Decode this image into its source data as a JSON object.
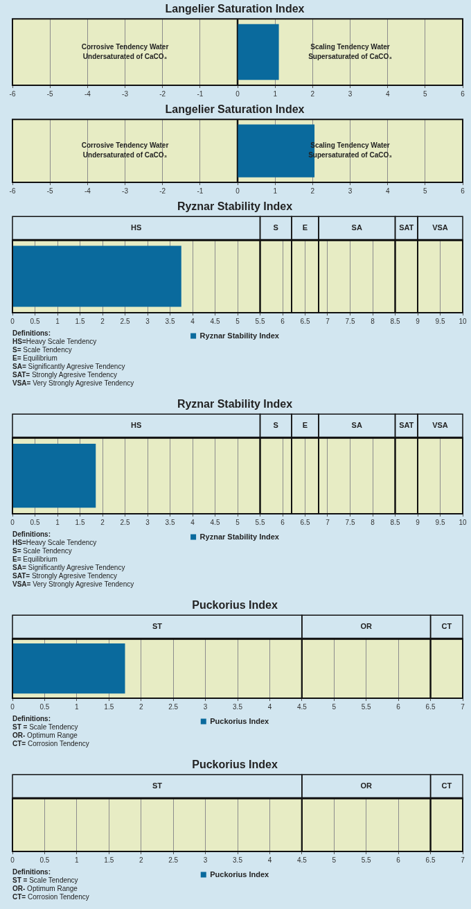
{
  "chart_data": [
    {
      "type": "bar",
      "orientation": "horizontal",
      "title": "Langelier Saturation Index",
      "categories": [
        null
      ],
      "series": [
        {
          "color": "#0a6a9d",
          "values": [
            1.1
          ]
        }
      ],
      "xlim": [
        -6,
        6
      ],
      "xticks": [
        -6,
        -5,
        -4,
        -3,
        -2,
        -1,
        0,
        1,
        2,
        3,
        4,
        5,
        6
      ],
      "grid": "x",
      "tick_labels": "x",
      "ref_lines": [
        {
          "axis": "x",
          "value": 0
        }
      ],
      "annotations": [
        "Corrosive Tendency Water Undersaturated of CaCO₃",
        "Scaling Tendency Water Supersaturated of CaCO₃"
      ]
    },
    {
      "type": "bar",
      "orientation": "horizontal",
      "title": "Langelier Saturation Index",
      "categories": [
        null
      ],
      "series": [
        {
          "color": "#0a6a9d",
          "values": [
            2.05
          ]
        }
      ],
      "xlim": [
        -6,
        6
      ],
      "xticks": [
        -6,
        -5,
        -4,
        -3,
        -2,
        -1,
        0,
        1,
        2,
        3,
        4,
        5,
        6
      ],
      "grid": "x",
      "tick_labels": "x",
      "ref_lines": [
        {
          "axis": "x",
          "value": 0
        }
      ],
      "annotations": [
        "Corrosive Tendency Water Undersaturated of CaCO₃",
        "Scaling Tendency Water Supersaturated of CaCO₃"
      ]
    },
    {
      "type": "bar",
      "orientation": "horizontal",
      "title": "Ryznar Stability Index",
      "categories": [
        null
      ],
      "series": [
        {
          "name": "Ryznar Stability Index",
          "color": "#0a6a9d",
          "values": [
            3.75
          ]
        }
      ],
      "xlim": [
        0,
        10
      ],
      "xticks": [
        0,
        0.5,
        1,
        1.5,
        2,
        2.5,
        3,
        3.5,
        4,
        4.5,
        5,
        5.5,
        6,
        6.5,
        7,
        7.5,
        8,
        8.5,
        9,
        9.5,
        10
      ],
      "grid": "x",
      "tick_labels": "x",
      "legend": "bottom",
      "bands": [
        {
          "axis": "x",
          "from": 0,
          "to": 5.5,
          "label": "HS",
          "color": "#e7ecc4"
        },
        {
          "axis": "x",
          "from": 5.5,
          "to": 6.2,
          "label": "S",
          "color": "#e7ecc4"
        },
        {
          "axis": "x",
          "from": 6.2,
          "to": 6.8,
          "label": "E",
          "color": "#e7ecc4"
        },
        {
          "axis": "x",
          "from": 6.8,
          "to": 8.5,
          "label": "SA",
          "color": "#e7ecc4"
        },
        {
          "axis": "x",
          "from": 8.5,
          "to": 9,
          "label": "SAT",
          "color": "#e7ecc4"
        },
        {
          "axis": "x",
          "from": 9,
          "to": 10,
          "label": "VSA",
          "color": "#e7ecc4"
        }
      ],
      "annotations": [
        "Definitions:",
        "HS=Heavy Scale Tendency",
        "S= Scale Tendency",
        "E= Equilibrium",
        "SA= Significantly Agresive Tendency",
        "SAT= Strongly Agresive Tendency",
        "VSA= Very Strongly Agresive Tendency"
      ]
    },
    {
      "type": "bar",
      "orientation": "horizontal",
      "title": "Ryznar Stability Index",
      "categories": [
        null
      ],
      "series": [
        {
          "name": "Ryznar Stability Index",
          "color": "#0a6a9d",
          "values": [
            1.85
          ]
        }
      ],
      "xlim": [
        0,
        10
      ],
      "xticks": [
        0,
        0.5,
        1,
        1.5,
        2,
        2.5,
        3,
        3.5,
        4,
        4.5,
        5,
        5.5,
        6,
        6.5,
        7,
        7.5,
        8,
        8.5,
        9,
        9.5,
        10
      ],
      "grid": "x",
      "tick_labels": "x",
      "legend": "bottom",
      "bands": [
        {
          "axis": "x",
          "from": 0,
          "to": 5.5,
          "label": "HS",
          "color": "#e7ecc4"
        },
        {
          "axis": "x",
          "from": 5.5,
          "to": 6.2,
          "label": "S",
          "color": "#e7ecc4"
        },
        {
          "axis": "x",
          "from": 6.2,
          "to": 6.8,
          "label": "E",
          "color": "#e7ecc4"
        },
        {
          "axis": "x",
          "from": 6.8,
          "to": 8.5,
          "label": "SA",
          "color": "#e7ecc4"
        },
        {
          "axis": "x",
          "from": 8.5,
          "to": 9,
          "label": "SAT",
          "color": "#e7ecc4"
        },
        {
          "axis": "x",
          "from": 9,
          "to": 10,
          "label": "VSA",
          "color": "#e7ecc4"
        }
      ],
      "annotations": [
        "Definitions:",
        "HS=Heavy Scale Tendency",
        "S= Scale Tendency",
        "E= Equilibrium",
        "SA= Significantly Agresive Tendency",
        "SAT= Strongly Agresive Tendency",
        "VSA= Very Strongly Agresive Tendency"
      ]
    },
    {
      "type": "bar",
      "orientation": "horizontal",
      "title": "Puckorius Index",
      "categories": [
        null
      ],
      "series": [
        {
          "name": "Puckorius Index",
          "color": "#0a6a9d",
          "values": [
            1.75
          ]
        }
      ],
      "xlim": [
        0,
        7
      ],
      "xticks": [
        0,
        0.5,
        1,
        1.5,
        2,
        2.5,
        3,
        3.5,
        4,
        4.5,
        5,
        5.5,
        6,
        6.5,
        7
      ],
      "grid": "x",
      "tick_labels": "x",
      "legend": "bottom",
      "bands": [
        {
          "axis": "x",
          "from": 0,
          "to": 4.5,
          "label": "ST",
          "color": "#e7ecc4"
        },
        {
          "axis": "x",
          "from": 4.5,
          "to": 6.5,
          "label": "OR",
          "color": "#e7ecc4"
        },
        {
          "axis": "x",
          "from": 6.5,
          "to": 7,
          "label": "CT",
          "color": "#e7ecc4"
        }
      ],
      "annotations": [
        "Definitions:",
        "ST = Scale Tendency",
        "OR- Optimum Range",
        "CT= Corrosion Tendency"
      ]
    },
    {
      "type": "bar",
      "orientation": "horizontal",
      "title": "Puckorius Index",
      "categories": [
        null
      ],
      "series": [
        {
          "name": "Puckorius Index",
          "color": "#0a6a9d",
          "values": [
            null
          ]
        }
      ],
      "xlim": [
        0,
        7
      ],
      "xticks": [
        0,
        0.5,
        1,
        1.5,
        2,
        2.5,
        3,
        3.5,
        4,
        4.5,
        5,
        5.5,
        6,
        6.5,
        7
      ],
      "grid": "x",
      "tick_labels": "x",
      "legend": "bottom",
      "bands": [
        {
          "axis": "x",
          "from": 0,
          "to": 4.5,
          "label": "ST",
          "color": "#e7ecc4"
        },
        {
          "axis": "x",
          "from": 4.5,
          "to": 6.5,
          "label": "OR",
          "color": "#e7ecc4"
        },
        {
          "axis": "x",
          "from": 6.5,
          "to": 7,
          "label": "CT",
          "color": "#e7ecc4"
        }
      ],
      "annotations": [
        "Definitions:",
        "ST = Scale Tendency",
        "OR- Optimum Range",
        "CT= Corrosion Tendency"
      ]
    }
  ]
}
